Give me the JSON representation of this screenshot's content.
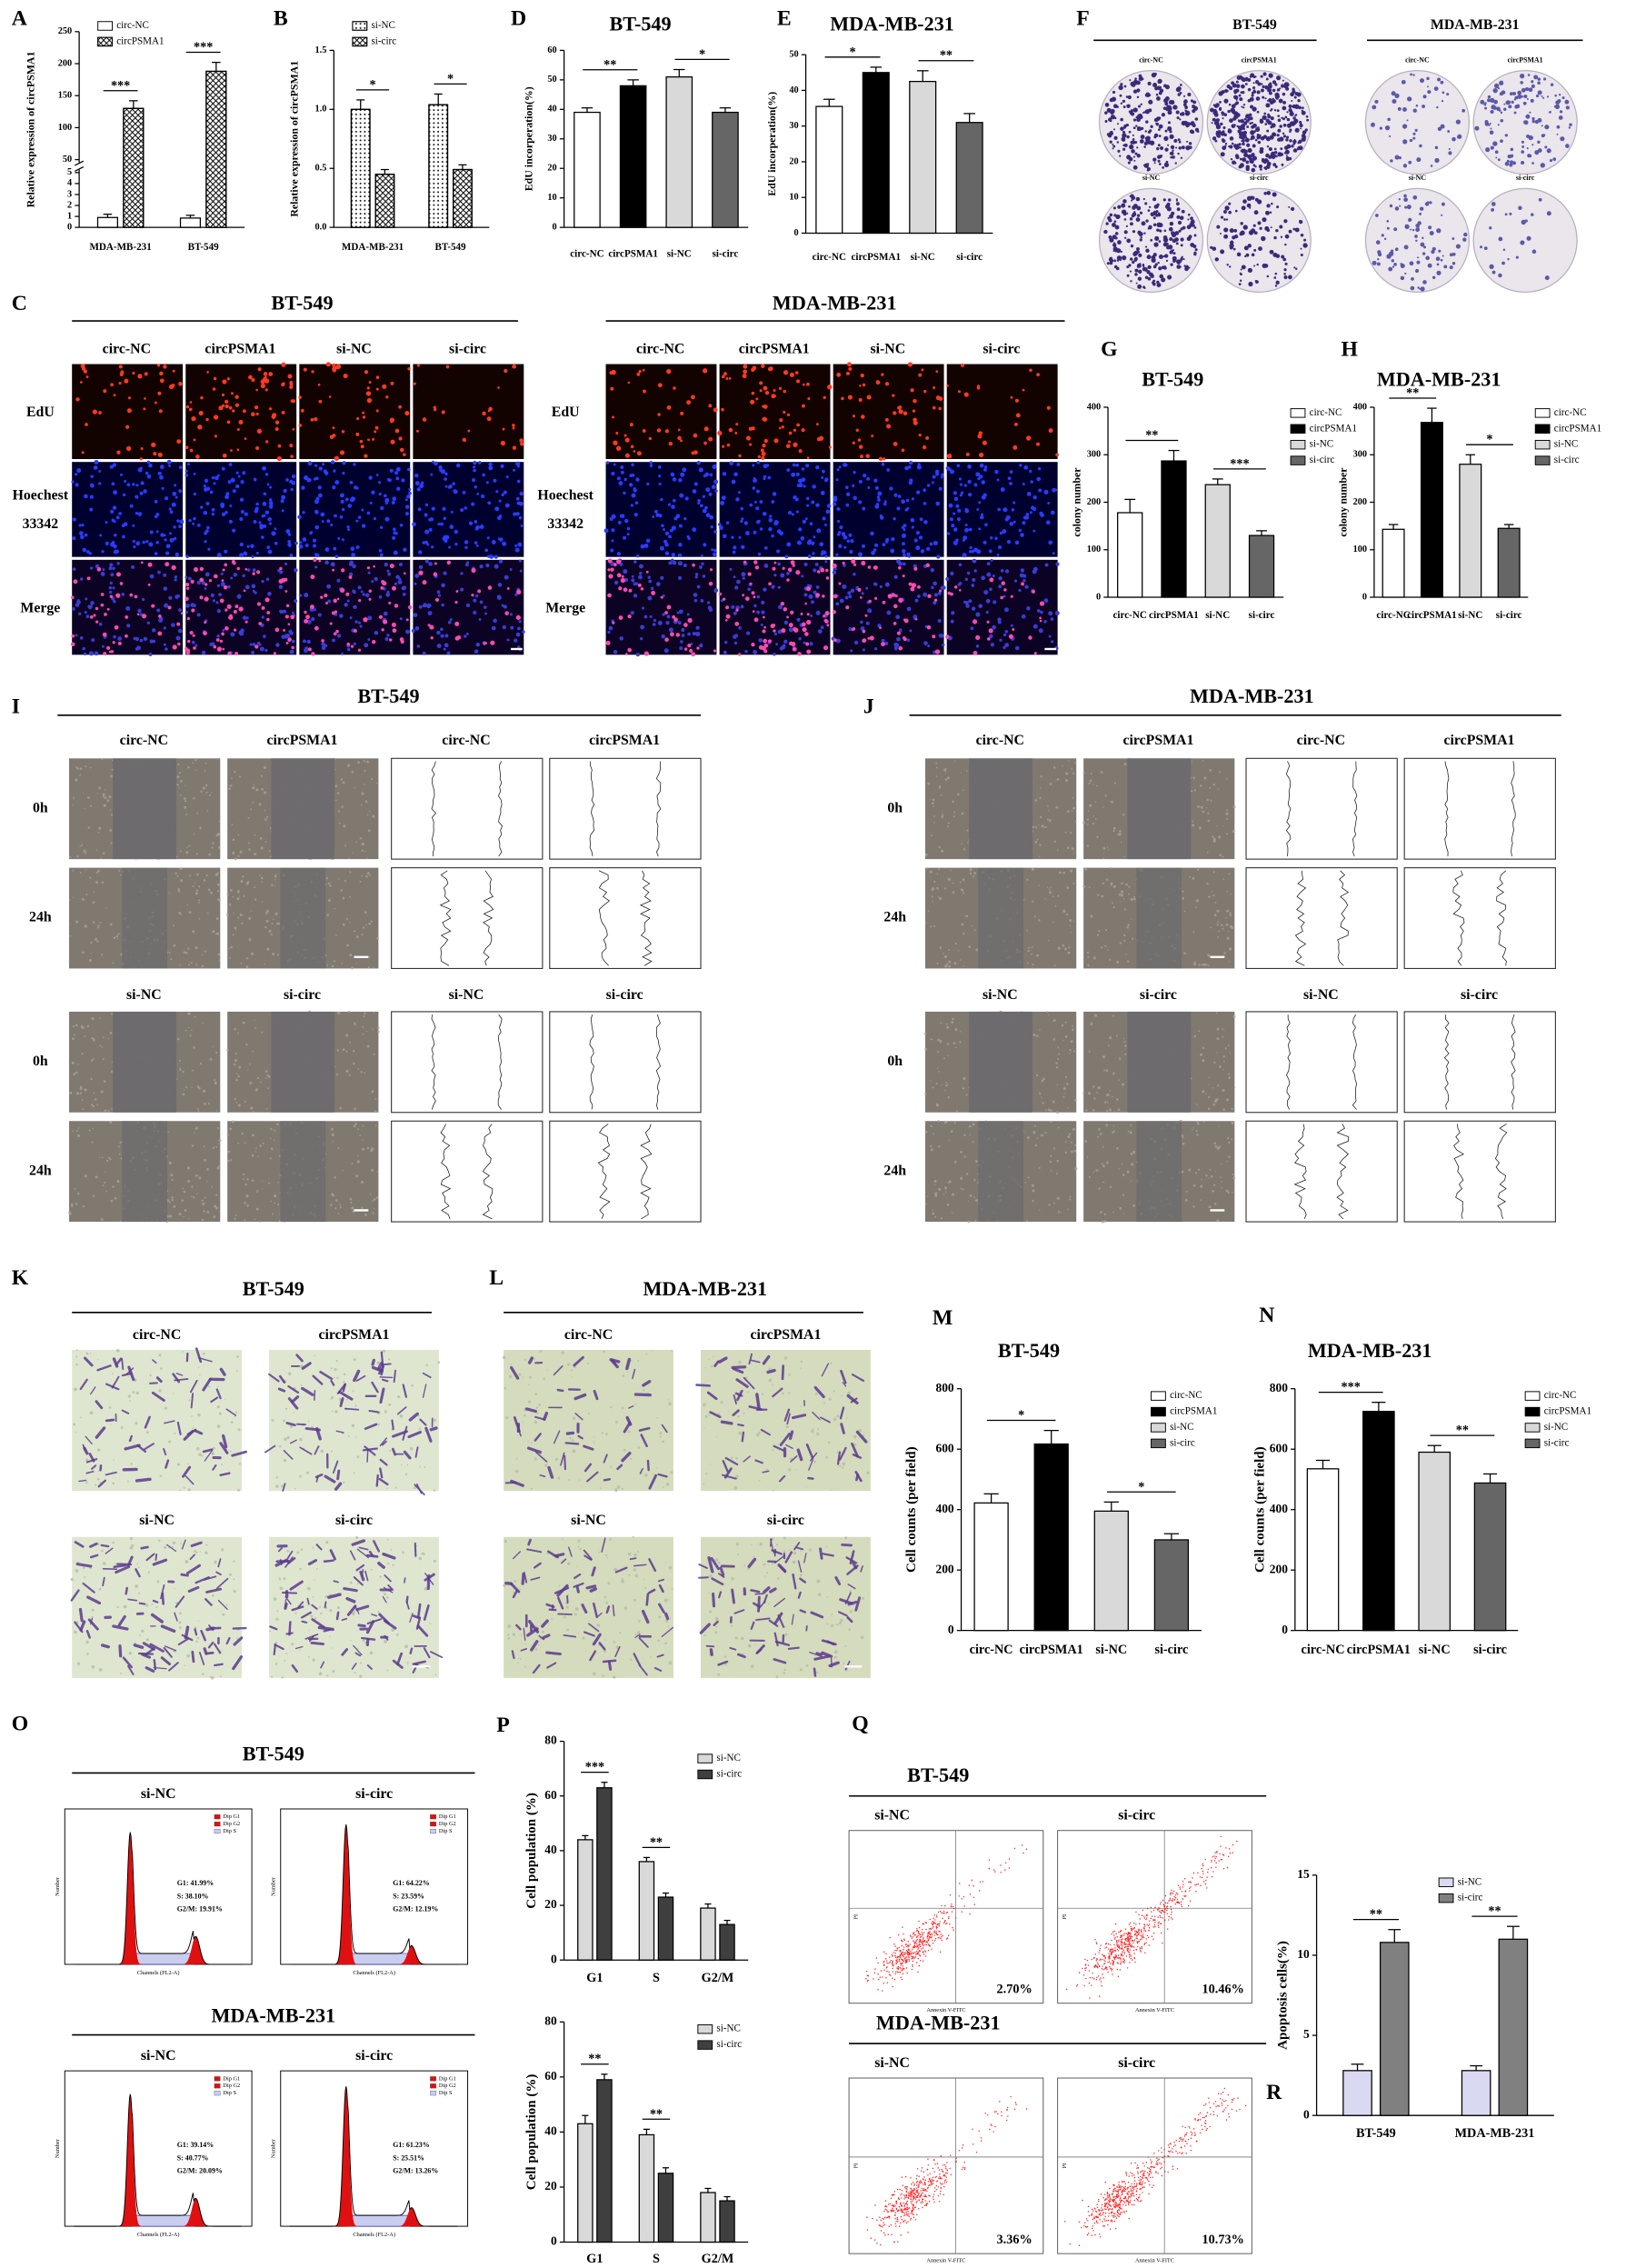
{
  "chart_data": [
    {
      "type": "bar",
      "panel": "A",
      "ylabel": "Relative expression of circPSMA1",
      "categories": [
        "MDA-MB-231",
        "BT-549"
      ],
      "series": [
        {
          "name": "circ-NC",
          "color": "#ffffff",
          "pattern": "none",
          "values": [
            0.9,
            0.85
          ],
          "errors": [
            0.3,
            0.25
          ]
        },
        {
          "name": "circPSMA1",
          "color": "#ffffff",
          "pattern": "cross",
          "values": [
            130,
            188
          ],
          "errors": [
            12,
            14
          ]
        }
      ],
      "ylim": [
        0,
        250
      ],
      "axis_break": [
        5,
        50
      ],
      "yticks": [
        0,
        1,
        2,
        3,
        4,
        5,
        50,
        100,
        150,
        200,
        250
      ],
      "legend": "upper left",
      "annotations": [
        "***",
        "***"
      ]
    },
    {
      "type": "bar",
      "panel": "B",
      "ylabel": "Relative expression of circPSMA1",
      "categories": [
        "MDA-MB-231",
        "BT-549"
      ],
      "series": [
        {
          "name": "si-NC",
          "color": "#ffffff",
          "pattern": "dots",
          "values": [
            1.0,
            1.04
          ],
          "errors": [
            0.08,
            0.09
          ]
        },
        {
          "name": "si-circ",
          "color": "#ffffff",
          "pattern": "cross",
          "values": [
            0.45,
            0.49
          ],
          "errors": [
            0.04,
            0.04
          ]
        }
      ],
      "ylim": [
        0,
        1.5
      ],
      "yticks": [
        {
          "value": 0,
          "label": "0.0"
        },
        0.5,
        {
          "value": 1,
          "label": "1.0"
        },
        1.5
      ],
      "legend": "upper left",
      "annotations": [
        "*",
        "*"
      ]
    },
    {
      "type": "bar",
      "panel": "D",
      "title": "BT-549",
      "ylabel": "EdU incorperation(%)",
      "categories": [
        "circ-NC",
        "circPSMA1",
        "si-NC",
        "si-circ"
      ],
      "colors": [
        "#ffffff",
        "#000000",
        "#d9d9d9",
        "#666666"
      ],
      "values": [
        39,
        48,
        51,
        39
      ],
      "errors": [
        1.5,
        2,
        2.5,
        1.5
      ],
      "ylim": [
        0,
        60
      ],
      "yticks": [
        0,
        10,
        20,
        30,
        40,
        50,
        60
      ],
      "annotations": [
        "**",
        "*"
      ]
    },
    {
      "type": "bar",
      "panel": "E",
      "title": "MDA-MB-231",
      "ylabel": "EdU incorperation(%)",
      "categories": [
        "circ-NC",
        "circPSMA1",
        "si-NC",
        "si-circ"
      ],
      "colors": [
        "#ffffff",
        "#000000",
        "#d9d9d9",
        "#666666"
      ],
      "values": [
        35.5,
        45,
        42.5,
        31
      ],
      "errors": [
        2,
        1.5,
        3,
        2.5
      ],
      "ylim": [
        0,
        50
      ],
      "yticks": [
        0,
        10,
        20,
        30,
        40,
        50
      ],
      "annotations": [
        "*",
        "**"
      ]
    },
    {
      "type": "bar",
      "panel": "G",
      "title": "BT-549",
      "ylabel": "colony number",
      "categories": [
        "circ-NC",
        "circPSMA1",
        "si-NC",
        "si-circ"
      ],
      "colors": [
        "#ffffff",
        "#000000",
        "#d9d9d9",
        "#666666"
      ],
      "values": [
        178,
        287,
        237,
        130
      ],
      "errors": [
        28,
        22,
        12,
        10
      ],
      "ylim": [
        0,
        400
      ],
      "yticks": [
        0,
        100,
        200,
        300,
        400
      ],
      "legend": "upper right",
      "annotations": [
        "**",
        "***"
      ]
    },
    {
      "type": "bar",
      "panel": "H",
      "title": "MDA-MB-231",
      "ylabel": "colony number",
      "categories": [
        "circ-NC",
        "circPSMA1",
        "si-NC",
        "si-circ"
      ],
      "colors": [
        "#ffffff",
        "#000000",
        "#d9d9d9",
        "#666666"
      ],
      "values": [
        143,
        368,
        280,
        145
      ],
      "errors": [
        10,
        30,
        20,
        8
      ],
      "ylim": [
        0,
        400
      ],
      "yticks": [
        0,
        100,
        200,
        300,
        400
      ],
      "legend": "upper right",
      "annotations": [
        "**",
        "*"
      ]
    },
    {
      "type": "bar",
      "panel": "M",
      "title": "BT-549",
      "ylabel": "Cell counts (per field)",
      "categories": [
        "circ-NC",
        "circPSMA1",
        "si-NC",
        "si-circ"
      ],
      "colors": [
        "#ffffff",
        "#000000",
        "#d9d9d9",
        "#666666"
      ],
      "values": [
        422,
        617,
        395,
        300
      ],
      "errors": [
        30,
        45,
        30,
        20
      ],
      "ylim": [
        0,
        800
      ],
      "yticks": [
        0,
        200,
        400,
        600,
        800
      ],
      "legend": "upper right",
      "annotations": [
        "*",
        "*"
      ]
    },
    {
      "type": "bar",
      "panel": "N",
      "title": "MDA-MB-231",
      "ylabel": "Cell counts (per field)",
      "categories": [
        "circ-NC",
        "circPSMA1",
        "si-NC",
        "si-circ"
      ],
      "colors": [
        "#ffffff",
        "#000000",
        "#d9d9d9",
        "#666666"
      ],
      "values": [
        535,
        725,
        590,
        488
      ],
      "errors": [
        28,
        30,
        22,
        30
      ],
      "ylim": [
        0,
        800
      ],
      "yticks": [
        0,
        200,
        400,
        600,
        800
      ],
      "legend": "upper right",
      "annotations": [
        "***",
        "**"
      ]
    },
    {
      "type": "bar",
      "panel": "P",
      "ylabel": "Cell population (%)",
      "categories": [
        "G1",
        "S",
        "G2/M"
      ],
      "series": [
        {
          "name": "si-NC",
          "color": "#d9d9d9",
          "values": [
            44,
            36,
            19
          ],
          "errors": [
            1.5,
            1.5,
            1.5
          ]
        },
        {
          "name": "si-circ",
          "color": "#3f3f3f",
          "values": [
            63,
            23,
            13
          ],
          "errors": [
            2,
            1.5,
            1.5
          ]
        }
      ],
      "ylim": [
        0,
        80
      ],
      "yticks": [
        0,
        20,
        40,
        60,
        80
      ],
      "legend": "upper right",
      "annotations": [
        "***",
        "**"
      ]
    },
    {
      "type": "bar",
      "ylabel": "Cell population (%)",
      "categories": [
        "G1",
        "S",
        "G2/M"
      ],
      "series": [
        {
          "name": "si-NC",
          "color": "#d9d9d9",
          "values": [
            43,
            39,
            18
          ],
          "errors": [
            3,
            2,
            1.5
          ]
        },
        {
          "name": "si-circ",
          "color": "#3f3f3f",
          "values": [
            59,
            25,
            15
          ],
          "errors": [
            2,
            2,
            1.5
          ]
        }
      ],
      "ylim": [
        0,
        80
      ],
      "yticks": [
        0,
        20,
        40,
        60,
        80
      ],
      "legend": "upper right",
      "annotations": [
        "**",
        "**"
      ]
    },
    {
      "type": "bar",
      "panel": "R",
      "ylabel": "Apoptosis cells(%)",
      "categories": [
        "BT-549",
        "MDA-MB-231"
      ],
      "series": [
        {
          "name": "si-NC",
          "color": "#d9d9f2",
          "values": [
            2.8,
            2.8
          ],
          "errors": [
            0.4,
            0.3
          ]
        },
        {
          "name": "si-circ",
          "color": "#808080",
          "values": [
            10.8,
            11.0
          ],
          "errors": [
            0.8,
            0.8
          ]
        }
      ],
      "ylim": [
        0,
        15
      ],
      "yticks": [
        0,
        5,
        10,
        15
      ],
      "legend": "upper right",
      "annotations": [
        "**",
        "**"
      ]
    }
  ],
  "panels": {
    "F": {
      "letter": "F",
      "titles": [
        "BT-549",
        "MDA-MB-231"
      ],
      "labels": [
        [
          "circ-NC",
          "circPSMA1",
          "si-NC",
          "si-circ"
        ],
        [
          "circ-NC",
          "circPSMA1",
          "si-NC",
          "si-circ"
        ]
      ]
    },
    "C": {
      "letter": "C",
      "titles": [
        "BT-549",
        "MDA-MB-231"
      ],
      "columns": [
        [
          "circ-NC",
          "circPSMA1",
          "si-NC",
          "si-circ"
        ],
        [
          "circ-NC",
          "circPSMA1",
          "si-NC",
          "si-circ"
        ]
      ],
      "rows": [
        "EdU",
        "Hoechest 33342",
        "Merge"
      ]
    },
    "I": {
      "letter": "I",
      "title": "BT-549",
      "columns": [
        [
          "circ-NC",
          "circPSMA1",
          "circ-NC",
          "circPSMA1"
        ],
        [
          "si-NC",
          "si-circ",
          "si-NC",
          "si-circ"
        ]
      ],
      "rows": [
        "0h",
        "24h"
      ]
    },
    "J": {
      "letter": "J",
      "title": "MDA-MB-231",
      "columns": [
        [
          "circ-NC",
          "circPSMA1",
          "circ-NC",
          "circPSMA1"
        ],
        [
          "si-NC",
          "si-circ",
          "si-NC",
          "si-circ"
        ]
      ],
      "rows": [
        "0h",
        "24h"
      ]
    },
    "K": {
      "letter": "K",
      "title": "BT-549",
      "labels": [
        "circ-NC",
        "circPSMA1",
        "si-NC",
        "si-circ"
      ]
    },
    "L": {
      "letter": "L",
      "title": "MDA-MB-231",
      "labels": [
        "circ-NC",
        "circPSMA1",
        "si-NC",
        "si-circ"
      ]
    },
    "O": {
      "letter": "O",
      "titles": [
        "BT-549",
        "MDA-MB-231"
      ],
      "columns": [
        "si-NC",
        "si-circ"
      ],
      "stats": [
        [
          [
            "G1: 41.99%",
            "S: 38.10%",
            "G2/M: 19.91%"
          ],
          [
            "G1: 64.22%",
            "S: 23.59%",
            "G2/M: 12.19%"
          ]
        ],
        [
          [
            "G1: 39.14%",
            "S: 40.77%",
            "G2/M: 20.09%"
          ],
          [
            "G1: 61.23%",
            "S: 25.51%",
            "G2/M: 13.26%"
          ]
        ]
      ],
      "legend": [
        "Dip G1",
        "Dip G2",
        "Dip S"
      ],
      "xlabel": "Channels (FL2-A)",
      "ylabel": "Number"
    },
    "Q": {
      "letter": "Q",
      "titles": [
        "BT-549",
        "MDA-MB-231"
      ],
      "columns": [
        "si-NC",
        "si-circ"
      ],
      "percents": [
        [
          "2.70%",
          "10.46%"
        ],
        [
          "3.36%",
          "10.73%"
        ]
      ],
      "xlabel": "Annexin V-FITC",
      "ylabel": "PI"
    }
  }
}
